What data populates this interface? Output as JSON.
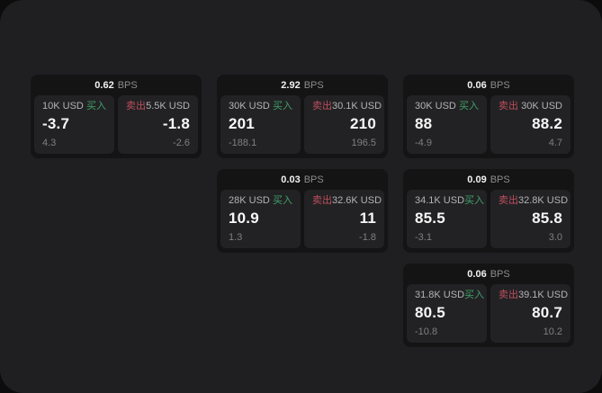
{
  "colors": {
    "outer_background": "#0c0c0d",
    "screen_background": "#1f1f21",
    "card_background": "#141415",
    "panel_background": "#222224",
    "buy_green": "#3fa169",
    "sell_red": "#bf4e5d",
    "price_white": "#f7f7f7",
    "label_gray": "#b3b3b5",
    "muted_gray": "#7f7f82"
  },
  "cards": [
    {
      "spread": "0.62",
      "unit": "BPS",
      "buy": {
        "amount": "10K USD",
        "side_label": "买入",
        "price": "-3.7",
        "delta": "4.3"
      },
      "sell": {
        "side_label": "卖出",
        "amount": "5.5K USD",
        "price": "-1.8",
        "delta": "-2.6"
      }
    },
    {
      "spread": "2.92",
      "unit": "BPS",
      "buy": {
        "amount": "30K USD",
        "side_label": "买入",
        "price": "201",
        "delta": "-188.1"
      },
      "sell": {
        "side_label": "卖出",
        "amount": "30.1K USD",
        "price": "210",
        "delta": "196.5"
      }
    },
    {
      "spread": "0.06",
      "unit": "BPS",
      "buy": {
        "amount": "30K USD",
        "side_label": "买入",
        "price": "88",
        "delta": "-4.9"
      },
      "sell": {
        "side_label": "卖出",
        "amount": "30K USD",
        "price": "88.2",
        "delta": "4.7"
      }
    },
    {
      "spread": "0.03",
      "unit": "BPS",
      "buy": {
        "amount": "28K USD",
        "side_label": "买入",
        "price": "10.9",
        "delta": "1.3"
      },
      "sell": {
        "side_label": "卖出",
        "amount": "32.6K USD",
        "price": "11",
        "delta": "-1.8"
      }
    },
    {
      "spread": "0.09",
      "unit": "BPS",
      "buy": {
        "amount": "34.1K USD",
        "side_label": "买入",
        "price": "85.5",
        "delta": "-3.1"
      },
      "sell": {
        "side_label": "卖出",
        "amount": "32.8K USD",
        "price": "85.8",
        "delta": "3.0"
      }
    },
    {
      "spread": "0.06",
      "unit": "BPS",
      "buy": {
        "amount": "31.8K USD",
        "side_label": "买入",
        "price": "80.5",
        "delta": "-10.8"
      },
      "sell": {
        "side_label": "卖出",
        "amount": "39.1K USD",
        "price": "80.7",
        "delta": "10.2"
      }
    }
  ]
}
